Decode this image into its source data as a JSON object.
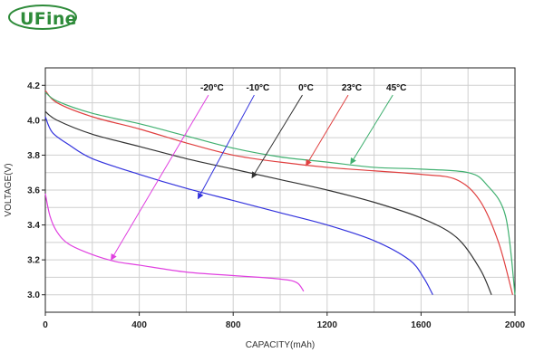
{
  "logo": {
    "text": "UFine",
    "color": "#2e8b3a"
  },
  "chart_data": {
    "type": "line",
    "title": "",
    "xlabel": "CAPACITY(mAh)",
    "ylabel": "VOLTAGE(V)",
    "xlim": [
      0,
      2000
    ],
    "ylim": [
      2.9,
      4.3
    ],
    "xticks": [
      0,
      400,
      800,
      1200,
      1600,
      2000
    ],
    "yticks": [
      3.0,
      3.2,
      3.4,
      3.6,
      3.8,
      4.0,
      4.2
    ],
    "grid": true,
    "series": [
      {
        "name": "-20°C",
        "color": "#e040e0",
        "points": [
          [
            0,
            3.58
          ],
          [
            20,
            3.45
          ],
          [
            50,
            3.36
          ],
          [
            100,
            3.29
          ],
          [
            200,
            3.23
          ],
          [
            300,
            3.19
          ],
          [
            400,
            3.17
          ],
          [
            600,
            3.13
          ],
          [
            800,
            3.11
          ],
          [
            1000,
            3.09
          ],
          [
            1070,
            3.07
          ],
          [
            1100,
            3.02
          ]
        ],
        "label_pos": [
          710,
          4.17
        ],
        "arrow_to": [
          280,
          3.2
        ]
      },
      {
        "name": "-10°C",
        "color": "#3333dd",
        "points": [
          [
            0,
            4.02
          ],
          [
            30,
            3.93
          ],
          [
            100,
            3.86
          ],
          [
            200,
            3.78
          ],
          [
            400,
            3.69
          ],
          [
            600,
            3.61
          ],
          [
            800,
            3.54
          ],
          [
            1000,
            3.47
          ],
          [
            1200,
            3.4
          ],
          [
            1400,
            3.31
          ],
          [
            1550,
            3.2
          ],
          [
            1610,
            3.1
          ],
          [
            1650,
            3.0
          ]
        ],
        "label_pos": [
          905,
          4.17
        ],
        "arrow_to": [
          650,
          3.55
        ]
      },
      {
        "name": "0°C",
        "color": "#333333",
        "points": [
          [
            0,
            4.05
          ],
          [
            50,
            4.0
          ],
          [
            200,
            3.92
          ],
          [
            400,
            3.85
          ],
          [
            600,
            3.78
          ],
          [
            800,
            3.72
          ],
          [
            1000,
            3.66
          ],
          [
            1200,
            3.6
          ],
          [
            1400,
            3.53
          ],
          [
            1600,
            3.44
          ],
          [
            1750,
            3.33
          ],
          [
            1850,
            3.15
          ],
          [
            1900,
            3.0
          ]
        ],
        "label_pos": [
          1110,
          4.17
        ],
        "arrow_to": [
          880,
          3.67
        ]
      },
      {
        "name": "23°C",
        "color": "#e04040",
        "points": [
          [
            0,
            4.17
          ],
          [
            50,
            4.1
          ],
          [
            200,
            4.02
          ],
          [
            400,
            3.95
          ],
          [
            600,
            3.87
          ],
          [
            800,
            3.8
          ],
          [
            1000,
            3.76
          ],
          [
            1200,
            3.73
          ],
          [
            1400,
            3.71
          ],
          [
            1600,
            3.69
          ],
          [
            1750,
            3.66
          ],
          [
            1850,
            3.54
          ],
          [
            1930,
            3.3
          ],
          [
            1990,
            3.0
          ]
        ],
        "label_pos": [
          1305,
          4.17
        ],
        "arrow_to": [
          1110,
          3.74
        ]
      },
      {
        "name": "45°C",
        "color": "#40b070",
        "points": [
          [
            0,
            4.16
          ],
          [
            50,
            4.11
          ],
          [
            200,
            4.04
          ],
          [
            400,
            3.98
          ],
          [
            600,
            3.91
          ],
          [
            800,
            3.84
          ],
          [
            1000,
            3.79
          ],
          [
            1200,
            3.76
          ],
          [
            1400,
            3.73
          ],
          [
            1600,
            3.72
          ],
          [
            1800,
            3.7
          ],
          [
            1880,
            3.63
          ],
          [
            1960,
            3.45
          ],
          [
            2000,
            3.0
          ]
        ],
        "label_pos": [
          1495,
          4.17
        ],
        "arrow_to": [
          1300,
          3.75
        ]
      }
    ]
  }
}
